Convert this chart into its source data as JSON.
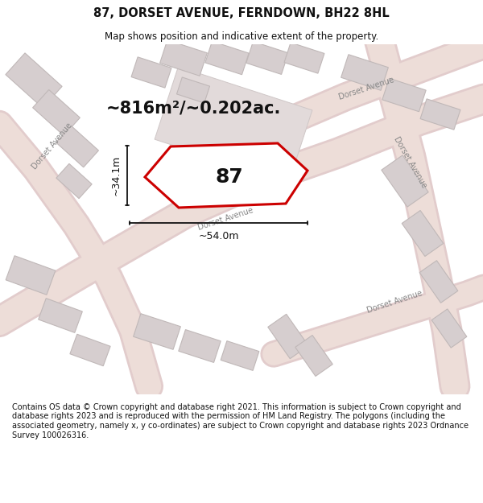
{
  "title_line1": "87, DORSET AVENUE, FERNDOWN, BH22 8HL",
  "title_line2": "Map shows position and indicative extent of the property.",
  "area_text": "~816m²/~0.202ac.",
  "label_87": "87",
  "dim_width": "~54.0m",
  "dim_height": "~34.1m",
  "footer_text": "Contains OS data © Crown copyright and database right 2021. This information is subject to Crown copyright and database rights 2023 and is reproduced with the permission of HM Land Registry. The polygons (including the associated geometry, namely x, y co-ordinates) are subject to Crown copyright and database rights 2023 Ordnance Survey 100026316.",
  "bg_color": "#ffffff",
  "map_bg": "#f0edec",
  "road_outer": "#e2cccc",
  "road_inner": "#edddd8",
  "building_fill": "#d6cecf",
  "building_edge": "#c0b8b8",
  "red_color": "#cc0000",
  "black": "#111111",
  "road_label_color": "#888888",
  "title_fontsize": 10.5,
  "subtitle_fontsize": 8.5,
  "area_fontsize": 15,
  "num_fontsize": 18,
  "dim_fontsize": 9,
  "road_label_fontsize": 7,
  "footer_fontsize": 7
}
